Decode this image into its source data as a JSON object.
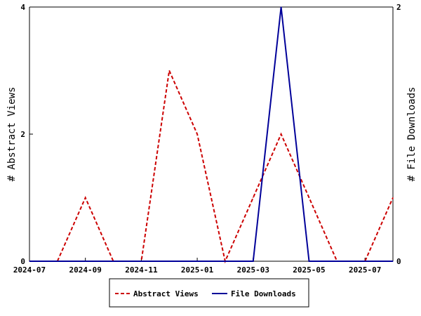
{
  "chart_data": {
    "type": "line",
    "x_tick_labels": [
      "2024-07",
      "2024-09",
      "2024-11",
      "2025-01",
      "2025-03",
      "2025-05",
      "2025-07"
    ],
    "x": [
      "2024-07",
      "2024-08",
      "2024-09",
      "2024-10",
      "2024-11",
      "2024-12",
      "2025-01",
      "2025-02",
      "2025-03",
      "2025-04",
      "2025-05",
      "2025-06",
      "2025-07",
      "2025-08"
    ],
    "xlim": [
      "2024-07",
      "2025-08"
    ],
    "y_left": {
      "label": "# Abstract Views",
      "ticks": [
        "0",
        "2",
        "4"
      ],
      "ylim": [
        0,
        4
      ]
    },
    "y_right": {
      "label": "# File Downloads",
      "ticks": [
        "0",
        "2"
      ],
      "ylim": [
        0,
        2
      ]
    },
    "series": [
      {
        "name": "Abstract Views",
        "axis": "left",
        "color": "#cc0000",
        "dash": "dashed",
        "values": [
          0,
          0,
          1,
          0,
          0,
          3,
          2,
          0,
          1,
          2,
          1,
          0,
          0,
          1
        ]
      },
      {
        "name": "File Downloads",
        "axis": "right",
        "color": "#000099",
        "dash": "solid",
        "values": [
          0,
          0,
          0,
          0,
          0,
          0,
          0,
          0,
          0,
          2,
          0,
          0,
          0,
          0
        ]
      }
    ],
    "grid": false,
    "legend_position": "bottom-center"
  }
}
